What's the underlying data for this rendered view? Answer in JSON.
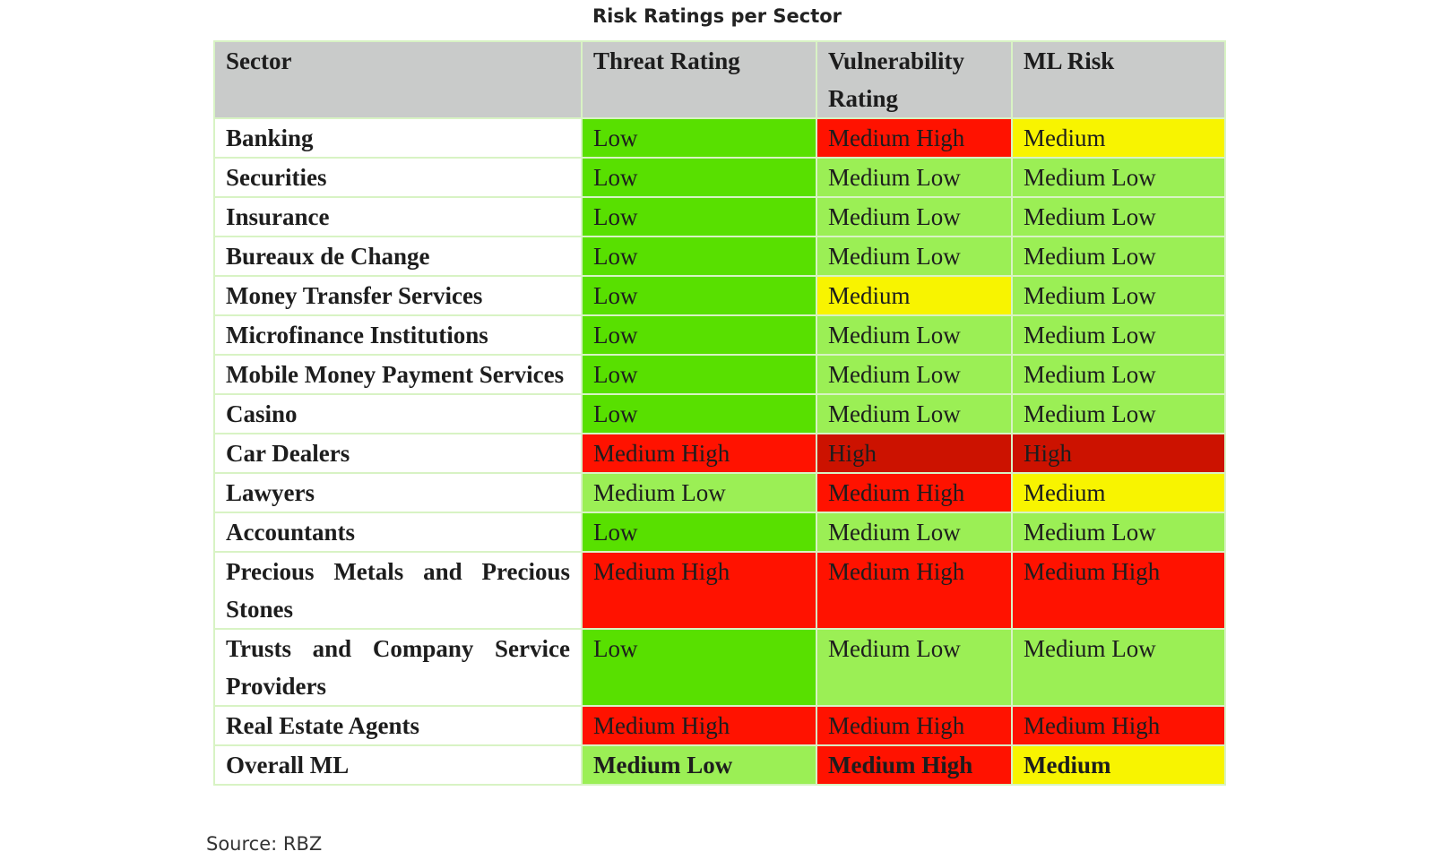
{
  "title": "Risk Ratings per Sector",
  "table": {
    "header": [
      "Sector",
      "Threat Rating",
      "Vulnerability Rating",
      "ML Risk"
    ],
    "header_color": "#c9cbca",
    "rows": [
      {
        "sector": "Banking",
        "cells": [
          {
            "text": "Low",
            "color": "#58e000"
          },
          {
            "text": "Medium High",
            "color": "#ff1200"
          },
          {
            "text": "Medium",
            "color": "#f8f400"
          }
        ]
      },
      {
        "sector": "Securities",
        "cells": [
          {
            "text": "Low",
            "color": "#58e000"
          },
          {
            "text": "Medium Low",
            "color": "#9bef55"
          },
          {
            "text": "Medium Low",
            "color": "#9bef55"
          }
        ]
      },
      {
        "sector": "Insurance",
        "cells": [
          {
            "text": "Low",
            "color": "#58e000"
          },
          {
            "text": "Medium Low",
            "color": "#9bef55"
          },
          {
            "text": "Medium Low",
            "color": "#9bef55"
          }
        ]
      },
      {
        "sector": "Bureaux de Change",
        "cells": [
          {
            "text": "Low",
            "color": "#58e000"
          },
          {
            "text": "Medium Low",
            "color": "#9bef55"
          },
          {
            "text": "Medium Low",
            "color": "#9bef55"
          }
        ]
      },
      {
        "sector": "Money Transfer Services",
        "cells": [
          {
            "text": "Low",
            "color": "#58e000"
          },
          {
            "text": "Medium",
            "color": "#f8f400"
          },
          {
            "text": "Medium Low",
            "color": "#9bef55"
          }
        ]
      },
      {
        "sector": "Microfinance Institutions",
        "cells": [
          {
            "text": "Low",
            "color": "#58e000"
          },
          {
            "text": "Medium Low",
            "color": "#9bef55"
          },
          {
            "text": "Medium Low",
            "color": "#9bef55"
          }
        ]
      },
      {
        "sector": "Mobile Money Payment Services",
        "cells": [
          {
            "text": "Low",
            "color": "#58e000"
          },
          {
            "text": "Medium Low",
            "color": "#9bef55"
          },
          {
            "text": "Medium Low",
            "color": "#9bef55"
          }
        ]
      },
      {
        "sector": "Casino",
        "cells": [
          {
            "text": "Low",
            "color": "#58e000"
          },
          {
            "text": "Medium Low",
            "color": "#9bef55"
          },
          {
            "text": "Medium Low",
            "color": "#9bef55"
          }
        ]
      },
      {
        "sector": "Car Dealers",
        "cells": [
          {
            "text": "Medium High",
            "color": "#ff1200"
          },
          {
            "text": "High",
            "color": "#cc1200"
          },
          {
            "text": "High",
            "color": "#cc1200"
          }
        ]
      },
      {
        "sector": "Lawyers",
        "cells": [
          {
            "text": "Medium Low",
            "color": "#9bef55"
          },
          {
            "text": "Medium High",
            "color": "#ff1200"
          },
          {
            "text": "Medium",
            "color": "#f8f400"
          }
        ]
      },
      {
        "sector": "Accountants",
        "cells": [
          {
            "text": "Low",
            "color": "#58e000"
          },
          {
            "text": "Medium Low",
            "color": "#9bef55"
          },
          {
            "text": "Medium Low",
            "color": "#9bef55"
          }
        ]
      },
      {
        "sector": "Precious Metals and Precious Stones",
        "cells": [
          {
            "text": "Medium High",
            "color": "#ff1200"
          },
          {
            "text": "Medium High",
            "color": "#ff1200"
          },
          {
            "text": "Medium High",
            "color": "#ff1200"
          }
        ]
      },
      {
        "sector": "Trusts and Company Service Providers",
        "cells": [
          {
            "text": "Low",
            "color": "#58e000"
          },
          {
            "text": "Medium Low",
            "color": "#9bef55"
          },
          {
            "text": "Medium Low",
            "color": "#9bef55"
          }
        ]
      },
      {
        "sector": "Real Estate Agents",
        "cells": [
          {
            "text": "Medium High",
            "color": "#ff1200"
          },
          {
            "text": "Medium High",
            "color": "#ff1200"
          },
          {
            "text": "Medium High",
            "color": "#ff1200"
          }
        ]
      },
      {
        "sector": "Overall ML",
        "bold": true,
        "cells": [
          {
            "text": "Medium Low",
            "color": "#9bef55"
          },
          {
            "text": "Medium High",
            "color": "#ff1200"
          },
          {
            "text": "Medium",
            "color": "#f8f400"
          }
        ]
      }
    ]
  },
  "source": "Source: RBZ"
}
